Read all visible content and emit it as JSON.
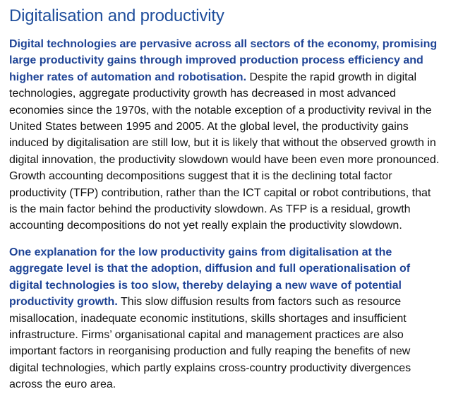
{
  "document": {
    "title": "Digitalisation and productivity",
    "paragraphs": [
      {
        "lead": "Digital technologies are pervasive across all sectors of the economy, promising large productivity gains through improved production process efficiency and higher rates of automation and robotisation.",
        "body": " Despite the rapid growth in digital technologies, aggregate productivity growth has decreased in most advanced economies since the 1970s, with the notable exception of a productivity revival in the United States between 1995 and 2005. At the global level, the productivity gains induced by digitalisation are still low, but it is likely that without the observed growth in digital innovation, the productivity slowdown would have been even more pronounced. Growth accounting decompositions suggest that it is the declining total factor productivity (TFP) contribution, rather than the ICT capital or robot contributions, that is the main factor behind the productivity slowdown. As TFP is a residual, growth accounting decompositions do not yet really explain the productivity slowdown."
      },
      {
        "lead": "One explanation for the low productivity gains from digitalisation at the aggregate level is that the adoption, diffusion and full operationalisation of digital technologies is too slow, thereby delaying a new wave of potential productivity growth.",
        "body": " This slow diffusion results from factors such as resource misallocation, inadequate economic institutions, skills shortages and insufficient infrastructure. Firms’ organisational capital and management practices are also important factors in reorganising production and fully reaping the benefits of new digital technologies, which partly explains cross-country productivity divergences across the euro area."
      }
    ],
    "colors": {
      "title": "#1f4e9c",
      "lead": "#1f4496",
      "body": "#111111"
    }
  }
}
